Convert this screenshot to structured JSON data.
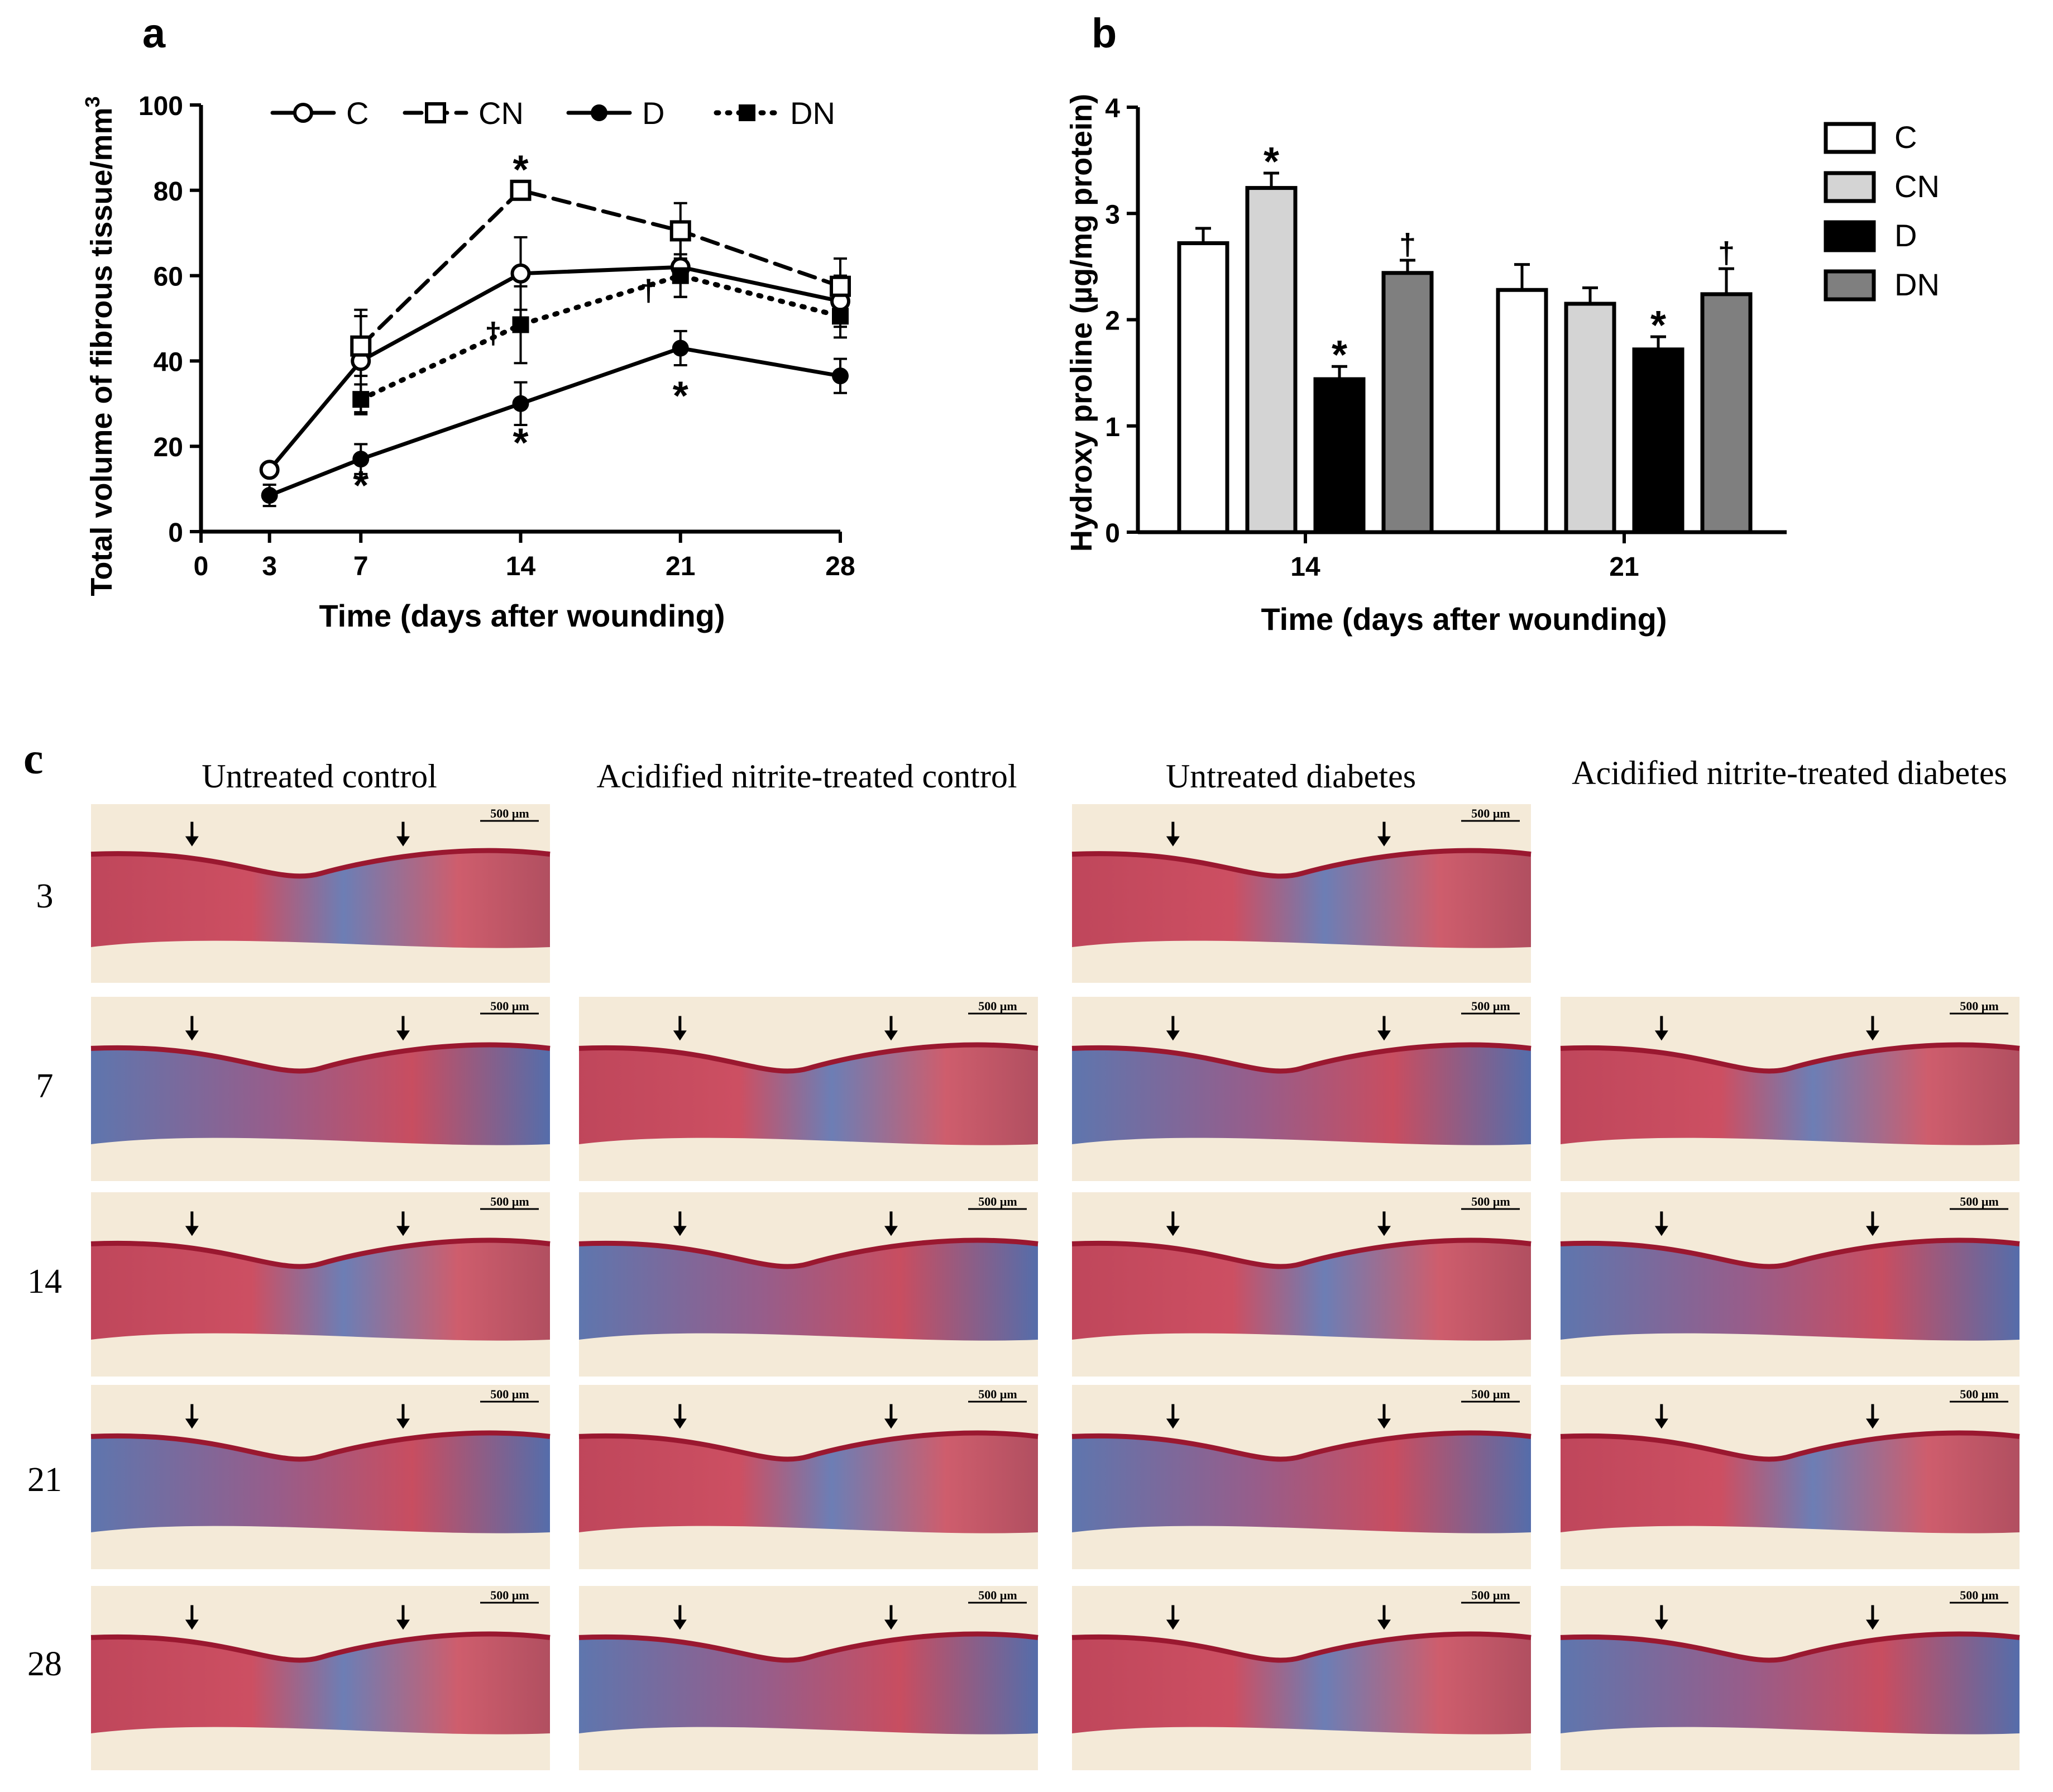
{
  "chart_data": [
    {
      "panel": "a",
      "type": "line",
      "ylabel": "Total volume of fibrous tissue/mm",
      "ylabel_sup": "3",
      "xlabel": "Time (days after wounding)",
      "ylim": [
        0,
        100
      ],
      "yticks": [
        0,
        20,
        40,
        60,
        80,
        100
      ],
      "xlim": [
        0,
        28
      ],
      "xticks": [
        0,
        3,
        7,
        14,
        21,
        28
      ],
      "series": [
        {
          "name": "C",
          "marker": "open-circle",
          "line": "solid",
          "x": [
            3,
            7,
            14,
            21,
            28
          ],
          "values": [
            14.5,
            40,
            60.5,
            62,
            54
          ],
          "err": [
            0,
            12,
            8.5,
            7,
            6
          ]
        },
        {
          "name": "CN",
          "marker": "open-square",
          "line": "dashed",
          "x": [
            7,
            14,
            21,
            28
          ],
          "values": [
            43.5,
            80,
            70.5,
            57.5
          ],
          "err": [
            7,
            0,
            6.5,
            6.5
          ]
        },
        {
          "name": "D",
          "marker": "filled-circle",
          "line": "solid",
          "x": [
            3,
            7,
            14,
            21,
            28
          ],
          "values": [
            8.5,
            17,
            30,
            43,
            36.5
          ],
          "err": [
            2.5,
            3.5,
            5,
            4,
            4
          ]
        },
        {
          "name": "DN",
          "marker": "filled-square",
          "line": "dotted",
          "x": [
            7,
            14,
            21,
            28
          ],
          "values": [
            31,
            48.5,
            60,
            50.5
          ],
          "err": [
            3.5,
            9,
            5,
            5
          ]
        }
      ],
      "annotations": [
        {
          "text": "*",
          "x": 14,
          "y": 84.5
        },
        {
          "text": "*",
          "x": 7,
          "y": 10.5
        },
        {
          "text": "*",
          "x": 14,
          "y": 20.5
        },
        {
          "text": "*",
          "x": 21,
          "y": 31.5
        },
        {
          "text": "†",
          "x": 12.8,
          "y": 47
        },
        {
          "text": "†",
          "x": 19.6,
          "y": 57
        }
      ]
    },
    {
      "panel": "b",
      "type": "bar",
      "ylabel": "Hydroxy proline (µg/mg protein)",
      "xlabel": "Time (days after wounding)",
      "ylim": [
        0,
        4
      ],
      "yticks": [
        0,
        1,
        2,
        3,
        4
      ],
      "categories": [
        "14",
        "21"
      ],
      "series": [
        {
          "name": "C",
          "color": "#ffffff",
          "values": [
            2.72,
            2.28
          ],
          "err": [
            0.14,
            0.24
          ],
          "marks": [
            "",
            ""
          ]
        },
        {
          "name": "CN",
          "color": "#d4d4d4",
          "values": [
            3.24,
            2.15
          ],
          "err": [
            0.14,
            0.15
          ],
          "marks": [
            "*",
            ""
          ]
        },
        {
          "name": "D",
          "color": "#000000",
          "values": [
            1.44,
            1.72
          ],
          "err": [
            0.12,
            0.12
          ],
          "marks": [
            "*",
            "*"
          ]
        },
        {
          "name": "DN",
          "color": "#7f7f7f",
          "values": [
            2.44,
            2.24
          ],
          "err": [
            0.12,
            0.24
          ],
          "marks": [
            "†",
            "†"
          ]
        }
      ]
    }
  ],
  "panel_labels": {
    "a": "a",
    "b": "b",
    "c": "c"
  },
  "histology": {
    "columns": [
      "Untreated control",
      "Acidified nitrite-treated control",
      "Untreated diabetes",
      "Acidified nitrite-treated diabetes"
    ],
    "rows": [
      "3",
      "7",
      "14",
      "21",
      "28"
    ],
    "scale_label": "500 µm",
    "missing": [
      [
        0,
        1
      ],
      [
        0,
        3
      ]
    ]
  },
  "colors": {
    "tissue_red": "#c8283c",
    "tissue_blue": "#3a5fa8",
    "background": "#f4ead8"
  }
}
